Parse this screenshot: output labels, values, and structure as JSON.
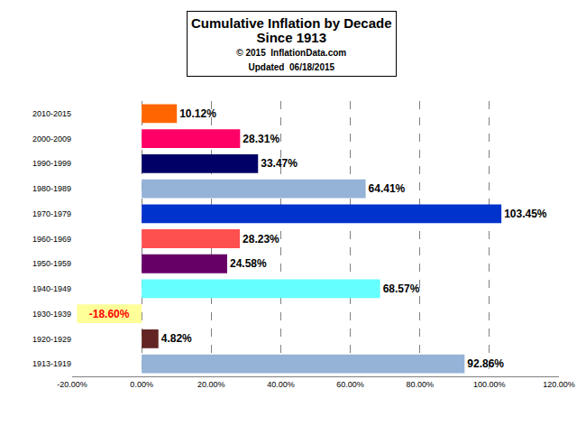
{
  "chart_data": {
    "type": "bar",
    "orientation": "horizontal",
    "title": "Cumulative Inflation by Decade\nSince 1913",
    "subtitle": [
      "© 2015  InflationData.com",
      "Updated  06/18/2015"
    ],
    "categories": [
      "1913-1919",
      "1920-1929",
      "1930-1939",
      "1940-1949",
      "1950-1959",
      "1960-1969",
      "1970-1979",
      "1980-1989",
      "1990-1999",
      "2000-2009",
      "2010-2015"
    ],
    "values": [
      92.86,
      4.82,
      -18.6,
      68.57,
      24.58,
      28.23,
      103.45,
      64.41,
      33.47,
      28.31,
      10.12
    ],
    "value_labels": [
      "92.86%",
      "4.82%",
      "-18.60%",
      "68.57%",
      "24.58%",
      "28.23%",
      "103.45%",
      "64.41%",
      "33.47%",
      "28.31%",
      "10.12%"
    ],
    "colors": [
      "#95B3D7",
      "#632523",
      "#FFFF99",
      "#66FFFF",
      "#660066",
      "#FF5050",
      "#0033CC",
      "#95B3D7",
      "#000066",
      "#FF0066",
      "#FF6600"
    ],
    "data_labels": true,
    "grid": true,
    "xlim": [
      -20,
      120
    ],
    "xticks": [
      {
        "value": -20,
        "label": "-20.00%"
      },
      {
        "value": 0,
        "label": "0.00%"
      },
      {
        "value": 20,
        "label": "20.00%"
      },
      {
        "value": 40,
        "label": "40.00%"
      },
      {
        "value": 60,
        "label": "60.00%"
      },
      {
        "value": 80,
        "label": "80.00%"
      },
      {
        "value": 100,
        "label": "100.00%"
      },
      {
        "value": 120,
        "label": "120.00%"
      }
    ]
  }
}
